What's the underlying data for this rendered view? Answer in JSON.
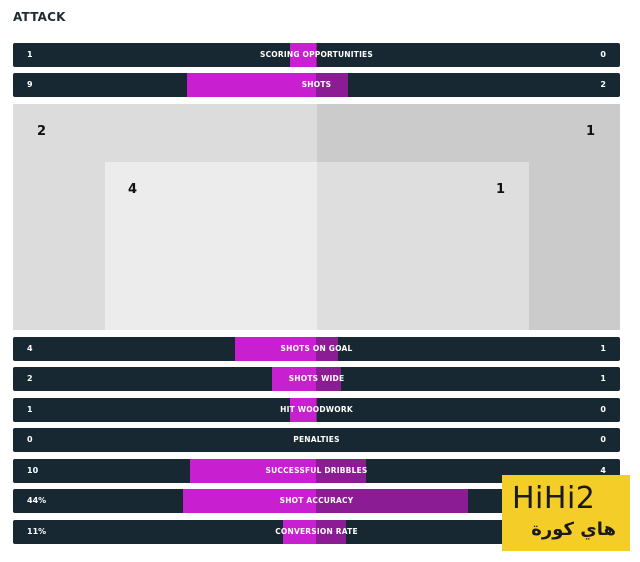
{
  "section": {
    "title": "ATTACK"
  },
  "stats": [
    {
      "label": "SCORING OPPORTUNITIES",
      "home": "1",
      "away": "0",
      "home_share": 1.0
    },
    {
      "label": "SHOTS",
      "home": "9",
      "away": "2",
      "home_share": 0.818
    },
    {
      "label": "SHOTS ON GOAL",
      "home": "4",
      "away": "1",
      "home_share": 0.8
    },
    {
      "label": "SHOTS WIDE",
      "home": "2",
      "away": "1",
      "home_share": 0.667
    },
    {
      "label": "HIT WOODWORK",
      "home": "1",
      "away": "0",
      "home_share": 1.0
    },
    {
      "label": "PENALTIES",
      "home": "0",
      "away": "0",
      "home_share": 0.0
    },
    {
      "label": "SUCCESSFUL DRIBBLES",
      "home": "10",
      "away": "4",
      "home_share": 0.714
    },
    {
      "label": "SHOT ACCURACY",
      "home": "44%",
      "away": "",
      "home_share": 0.44
    },
    {
      "label": "CONVERSION RATE",
      "home": "11%",
      "away": "",
      "home_share": 0.11
    }
  ],
  "shot_map": {
    "outside_box": {
      "home": "2",
      "away": "1"
    },
    "inside_box": {
      "home": "4",
      "away": "1"
    }
  },
  "watermark": {
    "latin": "HiHi2",
    "arabic": "هاي كورة"
  },
  "colors": {
    "bar_bg": "#182832",
    "home": "#c81fd0",
    "away": "#8b1c93",
    "watermark_bg": "#f5cd28"
  }
}
